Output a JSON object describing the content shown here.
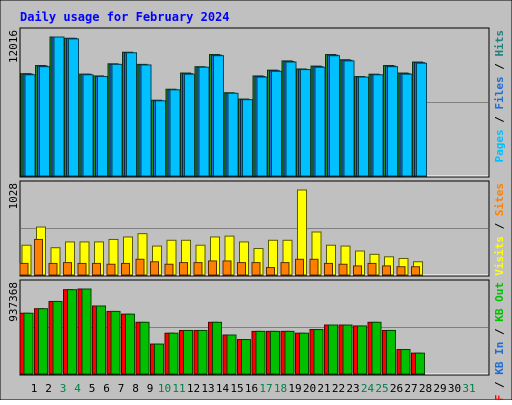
{
  "chart_data": {
    "type": "bar",
    "title": "Daily usage for February 2024",
    "categories": [
      "1",
      "2",
      "3",
      "4",
      "5",
      "6",
      "7",
      "8",
      "9",
      "10",
      "11",
      "12",
      "13",
      "14",
      "15",
      "16",
      "17",
      "18",
      "19",
      "20",
      "21",
      "22",
      "23",
      "24",
      "25",
      "26",
      "27",
      "28",
      "29",
      "30",
      "31"
    ],
    "weekend_days": [
      3,
      4,
      10,
      11,
      17,
      18,
      24,
      25,
      31
    ],
    "panels": [
      {
        "ylabel_parts": [
          {
            "text": "Pages",
            "color": "#00c0ff"
          },
          {
            "text": " / ",
            "color": "#000000"
          },
          {
            "text": "Files",
            "color": "#1f6dd0"
          },
          {
            "text": " / ",
            "color": "#000000"
          },
          {
            "text": "Hits",
            "color": "#208080"
          }
        ],
        "ymax_label": "12016",
        "ymax": 12016,
        "series": [
          {
            "name": "Hits",
            "color": "#228b22",
            "values": [
              8850,
              9550,
              12016,
              11900,
              8800,
              8650,
              9700,
              10700,
              9650,
              6550,
              7500,
              8900,
              9450,
              10500,
              7200,
              6650,
              8650,
              9150,
              9950,
              9250,
              9500,
              10500,
              10050,
              8600,
              8800,
              9550,
              8900,
              9850
            ]
          },
          {
            "name": "Files",
            "color": "#1f6dd0",
            "values": [
              8800,
              9500,
              12016,
              11900,
              8800,
              8600,
              9650,
              10650,
              9600,
              6500,
              7450,
              8850,
              9400,
              10450,
              7150,
              6600,
              8600,
              9100,
              9900,
              9200,
              9450,
              10450,
              10000,
              8550,
              8750,
              9500,
              8850,
              9800
            ]
          },
          {
            "name": "Pages",
            "color": "#00c0ff",
            "values": [
              8750,
              9450,
              12016,
              11850,
              8750,
              8600,
              9650,
              10650,
              9600,
              6500,
              7450,
              8800,
              9400,
              10400,
              7150,
              6600,
              8550,
              9050,
              9850,
              9200,
              9400,
              10400,
              9950,
              8550,
              8750,
              9450,
              8800,
              9750
            ]
          }
        ]
      },
      {
        "ylabel_parts": [
          {
            "text": "Visits",
            "color": "#ffff00"
          },
          {
            "text": " / ",
            "color": "#000000"
          },
          {
            "text": "Sites",
            "color": "#ff8000"
          }
        ],
        "ymax_label": "1028",
        "ymax": 1028,
        "series": [
          {
            "name": "Visits",
            "color": "#ffff00",
            "values": [
              360,
              580,
              330,
              400,
              400,
              400,
              430,
              460,
              500,
              350,
              420,
              420,
              360,
              460,
              470,
              400,
              320,
              420,
              420,
              1028,
              520,
              360,
              350,
              290,
              250,
              220,
              200,
              160
            ]
          },
          {
            "name": "Sites",
            "color": "#ff8000",
            "values": [
              140,
              430,
              140,
              150,
              140,
              140,
              130,
              140,
              190,
              160,
              130,
              150,
              150,
              170,
              170,
              150,
              150,
              90,
              150,
              190,
              190,
              140,
              130,
              110,
              140,
              110,
              100,
              100
            ]
          }
        ]
      },
      {
        "ylabel_parts": [
          {
            "text": "KB F",
            "color": "#ff0000"
          },
          {
            "text": " / ",
            "color": "#000000"
          },
          {
            "text": "KB In",
            "color": "#1f6dd0"
          },
          {
            "text": " / ",
            "color": "#000000"
          },
          {
            "text": "KB Out",
            "color": "#00c000"
          }
        ],
        "ymax_label": "937368",
        "ymax": 937368,
        "series": [
          {
            "name": "KB F",
            "color": "#ff0000",
            "values": [
              670000,
              720000,
              800000,
              930000,
              937368,
              750000,
              690000,
              660000,
              570000,
              330000,
              450000,
              480000,
              480000,
              570000,
              430000,
              380000,
              470000,
              470000,
              470000,
              450000,
              490000,
              540000,
              540000,
              530000,
              570000,
              480000,
              270000,
              230000
            ]
          },
          {
            "name": "KB Out",
            "color": "#00c000",
            "values": [
              670000,
              720000,
              800000,
              930000,
              937368,
              750000,
              690000,
              660000,
              570000,
              330000,
              450000,
              480000,
              480000,
              570000,
              430000,
              380000,
              470000,
              470000,
              470000,
              450000,
              490000,
              540000,
              540000,
              530000,
              570000,
              480000,
              270000,
              230000
            ]
          }
        ]
      }
    ]
  }
}
